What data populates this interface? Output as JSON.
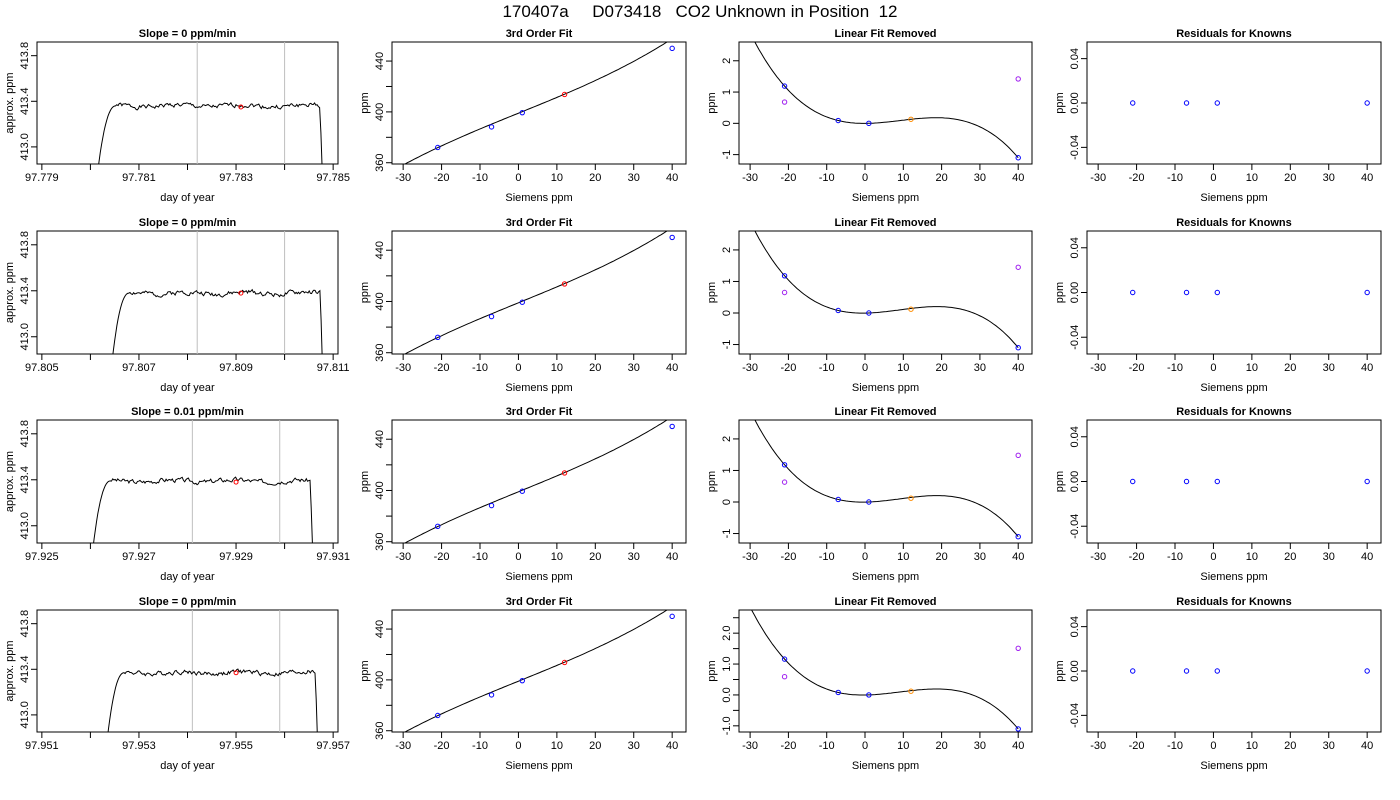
{
  "page": {
    "title": "170407a     D073418   CO2 Unknown in Position  12"
  },
  "colors": {
    "trace": "#000000",
    "cycle_line": "#bebebe",
    "unknown_point": "#ff0000",
    "standard_point": "#0000ff",
    "linear_residual": "#a020f0",
    "unknown_fit_point": "#ff8c00"
  },
  "chart_data": [
    {
      "type": "line",
      "panel": "trace",
      "row": 1,
      "title": "Slope =  0  ppm/min",
      "xlabel": "day of year",
      "ylabel": "approx. ppm",
      "xlim": [
        97.7789,
        97.7851
      ],
      "ylim": [
        412.85,
        413.92
      ],
      "xticks": [
        97.779,
        97.781,
        97.783,
        97.785
      ],
      "xtick_labels": [
        "97.779",
        "97.781",
        "97.783",
        "97.785"
      ],
      "xminor": [
        97.78,
        97.782,
        97.784
      ],
      "yticks": [
        413.0,
        413.4,
        413.8
      ],
      "ytick_labels": [
        "413.0",
        "413.4",
        "413.8"
      ],
      "vlines": [
        97.7822,
        97.784
      ],
      "start": 97.7801,
      "end": 97.7848,
      "level": 413.36,
      "seed": 1,
      "marker": {
        "x": 97.7831,
        "y": 413.35
      }
    },
    {
      "type": "line",
      "panel": "cubic",
      "row": 1,
      "title": "3rd Order Fit",
      "xlabel": "Siemens ppm",
      "ylabel": "ppm",
      "xlim": [
        -32.9,
        43.6
      ],
      "ylim": [
        359,
        455
      ],
      "xticks": [
        -30,
        -20,
        -10,
        0,
        10,
        20,
        30,
        40
      ],
      "xtick_labels": [
        "-30",
        "-20",
        "-10",
        "0",
        "10",
        "20",
        "30",
        "40"
      ],
      "yticks": [
        360,
        400,
        440
      ],
      "ytick_labels": [
        "360",
        "400",
        "440"
      ],
      "yminor": [
        380,
        420
      ],
      "fit": {
        "offset": 398.98,
        "slope": 1.225,
        "c3": 0.00015,
        "c2": 0.0
      },
      "curve_x": [
        -30,
        40
      ],
      "points": [
        {
          "x": -21,
          "y": 372.0,
          "color": "#0000ff"
        },
        {
          "x": -7,
          "y": 388.2,
          "color": "#0000ff"
        },
        {
          "x": 1,
          "y": 399.4,
          "color": "#0000ff"
        },
        {
          "x": 12,
          "y": 413.7,
          "color": "#ff0000"
        },
        {
          "x": 40,
          "y": 450.0,
          "color": "#0000ff"
        }
      ]
    },
    {
      "type": "line",
      "panel": "residual",
      "row": 1,
      "title": "Linear Fit Removed",
      "xlabel": "Siemens ppm",
      "ylabel": "ppm",
      "xlim": [
        -32.9,
        43.6
      ],
      "ylim": [
        -1.3,
        2.6
      ],
      "xticks": [
        -30,
        -20,
        -10,
        0,
        10,
        20,
        30,
        40
      ],
      "xtick_labels": [
        "-30",
        "-20",
        "-10",
        "0",
        "10",
        "20",
        "30",
        "40"
      ],
      "yticks": [
        -1,
        0,
        1,
        2
      ],
      "ytick_labels": [
        "-1",
        "0",
        "1",
        "2"
      ],
      "curve_x": [
        -30,
        40
      ],
      "points": [
        {
          "x": -21,
          "y": 0.68,
          "color": "#a020f0"
        },
        {
          "x": 40,
          "y": 1.42,
          "color": "#a020f0"
        },
        {
          "x": -21,
          "y": 1.19,
          "color": "#0000ff"
        },
        {
          "x": -7,
          "y": 0.09,
          "color": "#0000ff"
        },
        {
          "x": 1,
          "y": 0.0,
          "color": "#0000ff"
        },
        {
          "x": 40,
          "y": -1.1,
          "color": "#0000ff"
        },
        {
          "x": 12,
          "y": 0.13,
          "color": "#ff8c00"
        }
      ]
    },
    {
      "type": "scatter",
      "panel": "knowns",
      "row": 1,
      "title": "Residuals for Knowns",
      "xlabel": "Siemens ppm",
      "ylabel": "ppm",
      "xlim": [
        -32.9,
        43.6
      ],
      "ylim": [
        -0.055,
        0.055
      ],
      "xticks": [
        -30,
        -20,
        -10,
        0,
        10,
        20,
        30,
        40
      ],
      "xtick_labels": [
        "-30",
        "-20",
        "-10",
        "0",
        "10",
        "20",
        "30",
        "40"
      ],
      "yticks": [
        -0.04,
        0.0,
        0.04
      ],
      "ytick_labels": [
        "-0.04",
        "0.00",
        "0.04"
      ],
      "points": [
        {
          "x": -21,
          "y": 0.0,
          "color": "#0000ff"
        },
        {
          "x": -7,
          "y": 0.0,
          "color": "#0000ff"
        },
        {
          "x": 1,
          "y": 0.0,
          "color": "#0000ff"
        },
        {
          "x": 40,
          "y": 0.0,
          "color": "#0000ff"
        }
      ]
    },
    {
      "type": "line",
      "panel": "trace",
      "row": 2,
      "title": "Slope =  0  ppm/min",
      "xlabel": "day of year",
      "ylabel": "approx. ppm",
      "xlim": [
        97.8049,
        97.8111
      ],
      "ylim": [
        412.85,
        413.92
      ],
      "xticks": [
        97.805,
        97.807,
        97.809,
        97.811
      ],
      "xtick_labels": [
        "97.805",
        "97.807",
        "97.809",
        "97.811"
      ],
      "xminor": [
        97.806,
        97.808,
        97.81
      ],
      "yticks": [
        413.0,
        413.4,
        413.8
      ],
      "ytick_labels": [
        "413.0",
        "413.4",
        "413.8"
      ],
      "vlines": [
        97.8082,
        97.81
      ],
      "start": 97.8064,
      "end": 97.8108,
      "level": 413.38,
      "seed": 2,
      "marker": {
        "x": 97.8091,
        "y": 413.38
      }
    },
    {
      "type": "line",
      "panel": "cubic",
      "row": 2,
      "title": "3rd Order Fit",
      "xlabel": "Siemens ppm",
      "ylabel": "ppm",
      "xlim": [
        -32.9,
        43.6
      ],
      "ylim": [
        359,
        455
      ],
      "xticks": [
        -30,
        -20,
        -10,
        0,
        10,
        20,
        30,
        40
      ],
      "xtick_labels": [
        "-30",
        "-20",
        "-10",
        "0",
        "10",
        "20",
        "30",
        "40"
      ],
      "yticks": [
        360,
        400,
        440
      ],
      "ytick_labels": [
        "360",
        "400",
        "440"
      ],
      "yminor": [
        380,
        420
      ],
      "fit": {
        "offset": 398.98,
        "slope": 1.225,
        "c3": 0.00015,
        "c2": 0.0
      },
      "curve_x": [
        -30,
        40
      ],
      "points": [
        {
          "x": -21,
          "y": 372.0,
          "color": "#0000ff"
        },
        {
          "x": -7,
          "y": 388.2,
          "color": "#0000ff"
        },
        {
          "x": 1,
          "y": 399.4,
          "color": "#0000ff"
        },
        {
          "x": 12,
          "y": 413.7,
          "color": "#ff0000"
        },
        {
          "x": 40,
          "y": 450.0,
          "color": "#0000ff"
        }
      ]
    },
    {
      "type": "line",
      "panel": "residual",
      "row": 2,
      "title": "Linear Fit Removed",
      "xlabel": "Siemens ppm",
      "ylabel": "ppm",
      "xlim": [
        -32.9,
        43.6
      ],
      "ylim": [
        -1.3,
        2.6
      ],
      "xticks": [
        -30,
        -20,
        -10,
        0,
        10,
        20,
        30,
        40
      ],
      "xtick_labels": [
        "-30",
        "-20",
        "-10",
        "0",
        "10",
        "20",
        "30",
        "40"
      ],
      "yticks": [
        -1,
        0,
        1,
        2
      ],
      "ytick_labels": [
        "-1",
        "0",
        "1",
        "2"
      ],
      "curve_x": [
        -30,
        40
      ],
      "points": [
        {
          "x": -21,
          "y": 0.65,
          "color": "#a020f0"
        },
        {
          "x": 40,
          "y": 1.45,
          "color": "#a020f0"
        },
        {
          "x": -21,
          "y": 1.18,
          "color": "#0000ff"
        },
        {
          "x": -7,
          "y": 0.08,
          "color": "#0000ff"
        },
        {
          "x": 1,
          "y": 0.0,
          "color": "#0000ff"
        },
        {
          "x": 40,
          "y": -1.1,
          "color": "#0000ff"
        },
        {
          "x": 12,
          "y": 0.12,
          "color": "#ff8c00"
        }
      ]
    },
    {
      "type": "scatter",
      "panel": "knowns",
      "row": 2,
      "title": "Residuals for Knowns",
      "xlabel": "Siemens ppm",
      "ylabel": "ppm",
      "xlim": [
        -32.9,
        43.6
      ],
      "ylim": [
        -0.055,
        0.055
      ],
      "xticks": [
        -30,
        -20,
        -10,
        0,
        10,
        20,
        30,
        40
      ],
      "xtick_labels": [
        "-30",
        "-20",
        "-10",
        "0",
        "10",
        "20",
        "30",
        "40"
      ],
      "yticks": [
        -0.04,
        0.0,
        0.04
      ],
      "ytick_labels": [
        "-0.04",
        "0.00",
        "0.04"
      ],
      "points": [
        {
          "x": -21,
          "y": 0.0,
          "color": "#0000ff"
        },
        {
          "x": -7,
          "y": 0.0,
          "color": "#0000ff"
        },
        {
          "x": 1,
          "y": 0.0,
          "color": "#0000ff"
        },
        {
          "x": 40,
          "y": 0.0,
          "color": "#0000ff"
        }
      ]
    },
    {
      "type": "line",
      "panel": "trace",
      "row": 3,
      "title": "Slope =  0.01  ppm/min",
      "xlabel": "day of year",
      "ylabel": "approx. ppm",
      "xlim": [
        97.9249,
        97.9311
      ],
      "ylim": [
        412.85,
        413.92
      ],
      "xticks": [
        97.925,
        97.927,
        97.929,
        97.931
      ],
      "xtick_labels": [
        "97.925",
        "97.927",
        "97.929",
        "97.931"
      ],
      "xminor": [
        97.926,
        97.928,
        97.93
      ],
      "yticks": [
        413.0,
        413.4,
        413.8
      ],
      "ytick_labels": [
        "413.0",
        "413.4",
        "413.8"
      ],
      "vlines": [
        97.9281,
        97.9299
      ],
      "start": 97.926,
      "end": 97.9306,
      "level": 413.39,
      "seed": 3,
      "marker": {
        "x": 97.929,
        "y": 413.38
      }
    },
    {
      "type": "line",
      "panel": "cubic",
      "row": 3,
      "title": "3rd Order Fit",
      "xlabel": "Siemens ppm",
      "ylabel": "ppm",
      "xlim": [
        -32.9,
        43.6
      ],
      "ylim": [
        359,
        455
      ],
      "xticks": [
        -30,
        -20,
        -10,
        0,
        10,
        20,
        30,
        40
      ],
      "xtick_labels": [
        "-30",
        "-20",
        "-10",
        "0",
        "10",
        "20",
        "30",
        "40"
      ],
      "yticks": [
        360,
        400,
        440
      ],
      "ytick_labels": [
        "360",
        "400",
        "440"
      ],
      "yminor": [
        380,
        420
      ],
      "fit": {
        "offset": 398.98,
        "slope": 1.225,
        "c3": 0.00015,
        "c2": 0.0
      },
      "curve_x": [
        -30,
        40
      ],
      "points": [
        {
          "x": -21,
          "y": 372.0,
          "color": "#0000ff"
        },
        {
          "x": -7,
          "y": 388.2,
          "color": "#0000ff"
        },
        {
          "x": 1,
          "y": 399.4,
          "color": "#0000ff"
        },
        {
          "x": 12,
          "y": 413.7,
          "color": "#ff0000"
        },
        {
          "x": 40,
          "y": 450.0,
          "color": "#0000ff"
        }
      ]
    },
    {
      "type": "line",
      "panel": "residual",
      "row": 3,
      "title": "Linear Fit Removed",
      "xlabel": "Siemens ppm",
      "ylabel": "ppm",
      "xlim": [
        -32.9,
        43.6
      ],
      "ylim": [
        -1.3,
        2.6
      ],
      "xticks": [
        -30,
        -20,
        -10,
        0,
        10,
        20,
        30,
        40
      ],
      "xtick_labels": [
        "-30",
        "-20",
        "-10",
        "0",
        "10",
        "20",
        "30",
        "40"
      ],
      "yticks": [
        -1,
        0,
        1,
        2
      ],
      "ytick_labels": [
        "-1",
        "0",
        "1",
        "2"
      ],
      "curve_x": [
        -30,
        40
      ],
      "points": [
        {
          "x": -21,
          "y": 0.63,
          "color": "#a020f0"
        },
        {
          "x": 40,
          "y": 1.48,
          "color": "#a020f0"
        },
        {
          "x": -21,
          "y": 1.18,
          "color": "#0000ff"
        },
        {
          "x": -7,
          "y": 0.08,
          "color": "#0000ff"
        },
        {
          "x": 1,
          "y": 0.0,
          "color": "#0000ff"
        },
        {
          "x": 40,
          "y": -1.1,
          "color": "#0000ff"
        },
        {
          "x": 12,
          "y": 0.12,
          "color": "#ff8c00"
        }
      ]
    },
    {
      "type": "scatter",
      "panel": "knowns",
      "row": 3,
      "title": "Residuals for Knowns",
      "xlabel": "Siemens ppm",
      "ylabel": "ppm",
      "xlim": [
        -32.9,
        43.6
      ],
      "ylim": [
        -0.055,
        0.055
      ],
      "xticks": [
        -30,
        -20,
        -10,
        0,
        10,
        20,
        30,
        40
      ],
      "xtick_labels": [
        "-30",
        "-20",
        "-10",
        "0",
        "10",
        "20",
        "30",
        "40"
      ],
      "yticks": [
        -0.04,
        0.0,
        0.04
      ],
      "ytick_labels": [
        "-0.04",
        "0.00",
        "0.04"
      ],
      "points": [
        {
          "x": -21,
          "y": 0.0,
          "color": "#0000ff"
        },
        {
          "x": -7,
          "y": 0.0,
          "color": "#0000ff"
        },
        {
          "x": 1,
          "y": 0.0,
          "color": "#0000ff"
        },
        {
          "x": 40,
          "y": 0.0,
          "color": "#0000ff"
        }
      ]
    },
    {
      "type": "line",
      "panel": "trace",
      "row": 4,
      "title": "Slope =  0  ppm/min",
      "xlabel": "day of year",
      "ylabel": "approx. ppm",
      "xlim": [
        97.9509,
        97.9571
      ],
      "ylim": [
        412.85,
        413.92
      ],
      "xticks": [
        97.951,
        97.953,
        97.955,
        97.957
      ],
      "xtick_labels": [
        "97.951",
        "97.953",
        "97.955",
        "97.957"
      ],
      "xminor": [
        97.952,
        97.954,
        97.956
      ],
      "yticks": [
        413.0,
        413.4,
        413.8
      ],
      "ytick_labels": [
        "413.0",
        "413.4",
        "413.8"
      ],
      "vlines": [
        97.9541,
        97.9559
      ],
      "start": 97.9523,
      "end": 97.9567,
      "level": 413.37,
      "seed": 4,
      "marker": {
        "x": 97.955,
        "y": 413.37
      }
    },
    {
      "type": "line",
      "panel": "cubic",
      "row": 4,
      "title": "3rd Order Fit",
      "xlabel": "Siemens ppm",
      "ylabel": "ppm",
      "xlim": [
        -32.9,
        43.6
      ],
      "ylim": [
        359,
        455
      ],
      "xticks": [
        -30,
        -20,
        -10,
        0,
        10,
        20,
        30,
        40
      ],
      "xtick_labels": [
        "-30",
        "-20",
        "-10",
        "0",
        "10",
        "20",
        "30",
        "40"
      ],
      "yticks": [
        360,
        400,
        440
      ],
      "ytick_labels": [
        "360",
        "400",
        "440"
      ],
      "yminor": [
        380,
        420
      ],
      "fit": {
        "offset": 398.98,
        "slope": 1.225,
        "c3": 0.00015,
        "c2": 0.0
      },
      "curve_x": [
        -30,
        40
      ],
      "points": [
        {
          "x": -21,
          "y": 372.0,
          "color": "#0000ff"
        },
        {
          "x": -7,
          "y": 388.2,
          "color": "#0000ff"
        },
        {
          "x": 1,
          "y": 399.4,
          "color": "#0000ff"
        },
        {
          "x": 12,
          "y": 413.7,
          "color": "#ff0000"
        },
        {
          "x": 40,
          "y": 450.0,
          "color": "#0000ff"
        }
      ]
    },
    {
      "type": "line",
      "panel": "residual",
      "row": 4,
      "title": "Linear Fit Removed",
      "xlabel": "Siemens ppm",
      "ylabel": "ppm",
      "xlim": [
        -32.9,
        43.6
      ],
      "ylim": [
        -1.2,
        2.75
      ],
      "xticks": [
        -30,
        -20,
        -10,
        0,
        10,
        20,
        30,
        40
      ],
      "xtick_labels": [
        "-30",
        "-20",
        "-10",
        "0",
        "10",
        "20",
        "30",
        "40"
      ],
      "yticks": [
        -1.0,
        0.0,
        1.0,
        2.0
      ],
      "ytick_labels": [
        "-1.0",
        "0.0",
        "1.0",
        "2.0"
      ],
      "yminor": [
        -0.5,
        0.5,
        1.5,
        2.5
      ],
      "curve_x": [
        -30,
        40
      ],
      "points": [
        {
          "x": -21,
          "y": 0.59,
          "color": "#a020f0"
        },
        {
          "x": 40,
          "y": 1.51,
          "color": "#a020f0"
        },
        {
          "x": -21,
          "y": 1.16,
          "color": "#0000ff"
        },
        {
          "x": -7,
          "y": 0.08,
          "color": "#0000ff"
        },
        {
          "x": 1,
          "y": 0.0,
          "color": "#0000ff"
        },
        {
          "x": 40,
          "y": -1.1,
          "color": "#0000ff"
        },
        {
          "x": 12,
          "y": 0.12,
          "color": "#ff8c00"
        }
      ]
    },
    {
      "type": "scatter",
      "panel": "knowns",
      "row": 4,
      "title": "Residuals for Knowns",
      "xlabel": "Siemens ppm",
      "ylabel": "ppm",
      "xlim": [
        -32.9,
        43.6
      ],
      "ylim": [
        -0.055,
        0.055
      ],
      "xticks": [
        -30,
        -20,
        -10,
        0,
        10,
        20,
        30,
        40
      ],
      "xtick_labels": [
        "-30",
        "-20",
        "-10",
        "0",
        "10",
        "20",
        "30",
        "40"
      ],
      "yticks": [
        -0.04,
        0.0,
        0.04
      ],
      "ytick_labels": [
        "-0.04",
        "0.00",
        "0.04"
      ],
      "points": [
        {
          "x": -21,
          "y": 0.0,
          "color": "#0000ff"
        },
        {
          "x": -7,
          "y": 0.0,
          "color": "#0000ff"
        },
        {
          "x": 1,
          "y": 0.0,
          "color": "#0000ff"
        },
        {
          "x": 40,
          "y": 0.0,
          "color": "#0000ff"
        }
      ]
    }
  ]
}
